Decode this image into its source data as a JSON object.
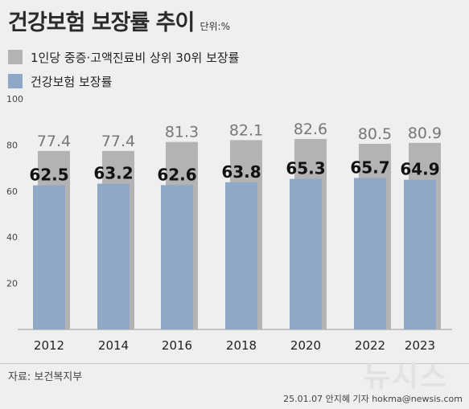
{
  "title": "건강보험 보장률 추이",
  "unit": "단위:%",
  "legend": [
    {
      "label": "1인당 중증·고액진료비 상위 30위 보장률",
      "color": "#b3b3b3"
    },
    {
      "label": "건강보험 보장률",
      "color": "#8fa8c8"
    }
  ],
  "source": "자료: 보건복지부",
  "brand": "뉴시스",
  "credit": "25.01.07 안지혜 기자 hokma@newsis.com",
  "chart_data": {
    "type": "bar",
    "categories": [
      "2012",
      "2014",
      "2016",
      "2018",
      "2020",
      "2022",
      "2023"
    ],
    "series": [
      {
        "name": "1인당 중증·고액진료비 상위 30위 보장률",
        "values": [
          77.4,
          77.4,
          81.3,
          82.1,
          82.6,
          80.5,
          80.9
        ],
        "color": "#b3b3b3"
      },
      {
        "name": "건강보험 보장률",
        "values": [
          62.5,
          63.2,
          62.6,
          63.8,
          65.3,
          65.7,
          64.9
        ],
        "color": "#8fa8c8"
      }
    ],
    "yticks": [
      20,
      40,
      60,
      80,
      100
    ],
    "ylim": [
      0,
      100
    ],
    "grid": false,
    "legend": "top-left"
  }
}
